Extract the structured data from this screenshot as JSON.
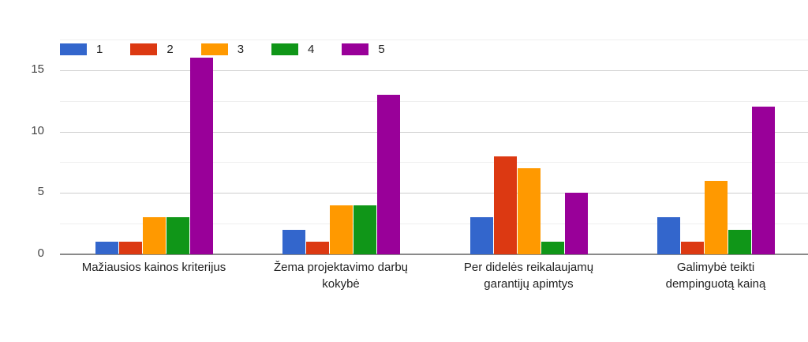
{
  "chart_data": {
    "type": "bar",
    "title": "",
    "xlabel": "",
    "ylabel": "",
    "ylim": [
      0,
      17.5
    ],
    "yticks": [
      0,
      5,
      10,
      15
    ],
    "grid": true,
    "legend_position": "top-left",
    "categories": [
      "Mažiausios kainos kriterijus",
      "Žema projektavimo darbų kokybė",
      "Per didelės reikalaujamų garantijų apimtys",
      "Galimybė teikti dempinguotą kainą"
    ],
    "category_lines": [
      [
        "Mažiausios kainos kriterijus"
      ],
      [
        "Žema projektavimo darbų",
        "kokybė"
      ],
      [
        "Per didelės reikalaujamų",
        "garantijų apimtys"
      ],
      [
        "Galimybė teikti",
        "dempinguotą kainą"
      ]
    ],
    "series": [
      {
        "name": "1",
        "color": "#3366cc",
        "values": [
          1,
          2,
          3,
          3
        ]
      },
      {
        "name": "2",
        "color": "#dc3912",
        "values": [
          1,
          1,
          8,
          1
        ]
      },
      {
        "name": "3",
        "color": "#ff9900",
        "values": [
          3,
          4,
          7,
          6
        ]
      },
      {
        "name": "4",
        "color": "#109618",
        "values": [
          3,
          4,
          1,
          2
        ]
      },
      {
        "name": "5",
        "color": "#990099",
        "values": [
          16,
          13,
          5,
          12
        ]
      }
    ]
  }
}
